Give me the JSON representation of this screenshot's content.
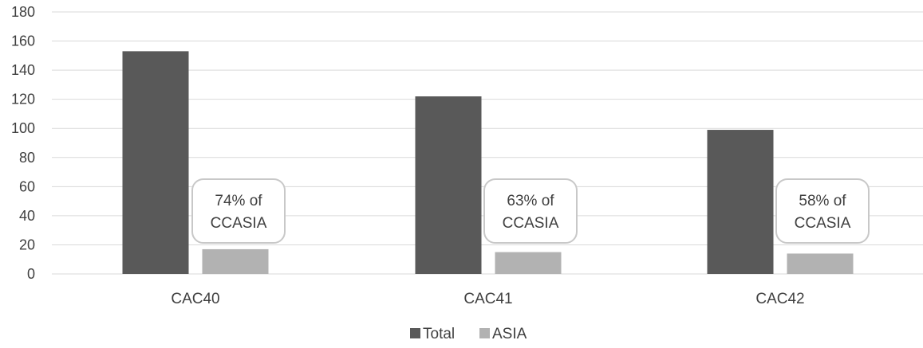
{
  "chart_data": {
    "type": "bar",
    "categories": [
      "CAC40",
      "CAC41",
      "CAC42"
    ],
    "series": [
      {
        "name": "Total",
        "values": [
          153,
          122,
          99
        ]
      },
      {
        "name": "ASIA",
        "values": [
          17,
          15,
          14
        ]
      }
    ],
    "ylim": [
      0,
      180
    ],
    "yticks": [
      0,
      20,
      40,
      60,
      80,
      100,
      120,
      140,
      160,
      180
    ],
    "grid": true,
    "legend_position": "bottom",
    "annotations": [
      {
        "category": "CAC40",
        "line1": "74% of",
        "line2": "CCASIA"
      },
      {
        "category": "CAC41",
        "line1": "63% of",
        "line2": "CCASIA"
      },
      {
        "category": "CAC42",
        "line1": "58% of",
        "line2": "CCASIA"
      }
    ]
  },
  "colors": {
    "Total": "#595959",
    "ASIA": "#b2b2b2",
    "grid": "#d9d9d9",
    "text": "#404040",
    "callout_border": "#c8c8c8"
  }
}
